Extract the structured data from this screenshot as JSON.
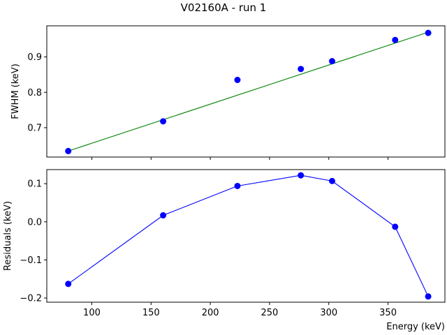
{
  "figure": {
    "title": "V02160A - run 1"
  },
  "chart_data": [
    {
      "type": "scatter",
      "ylabel": "FWHM (keV)",
      "xlabel": "",
      "xlim": [
        62,
        398
      ],
      "ylim": [
        0.617,
        0.988
      ],
      "yticks": [
        0.7,
        0.8,
        0.9
      ],
      "ytick_labels": [
        "0.7",
        "0.8",
        "0.9"
      ],
      "xticks": [
        100,
        150,
        200,
        250,
        300,
        350
      ],
      "show_xtick_labels": false,
      "grid": false,
      "colors": {
        "points": "#0000ff",
        "fit_line": "#008000"
      },
      "points": {
        "x": [
          80.1,
          160.2,
          222.9,
          276.4,
          302.8,
          356.0,
          383.9
        ],
        "y": [
          0.634,
          0.718,
          0.835,
          0.866,
          0.888,
          0.948,
          0.968
        ]
      },
      "fit_line": {
        "x": [
          80.1,
          383.9
        ],
        "y": [
          0.634,
          0.97
        ]
      }
    },
    {
      "type": "line",
      "ylabel": "Residuals (keV)",
      "xlabel": "Energy (keV)",
      "xlim": [
        62,
        398
      ],
      "ylim": [
        -0.211,
        0.137
      ],
      "yticks": [
        -0.2,
        -0.1,
        0.0,
        0.1
      ],
      "ytick_labels": [
        "−0.2",
        "−0.1",
        "0.0",
        "0.1"
      ],
      "xticks": [
        100,
        150,
        200,
        250,
        300,
        350
      ],
      "xtick_labels": [
        "100",
        "150",
        "200",
        "250",
        "300",
        "350"
      ],
      "grid": false,
      "colors": {
        "series": "#0000ff"
      },
      "series": {
        "x": [
          80.1,
          160.2,
          222.9,
          276.4,
          302.8,
          356.0,
          383.9
        ],
        "y": [
          -0.163,
          0.017,
          0.094,
          0.122,
          0.107,
          -0.013,
          -0.196
        ]
      }
    }
  ]
}
